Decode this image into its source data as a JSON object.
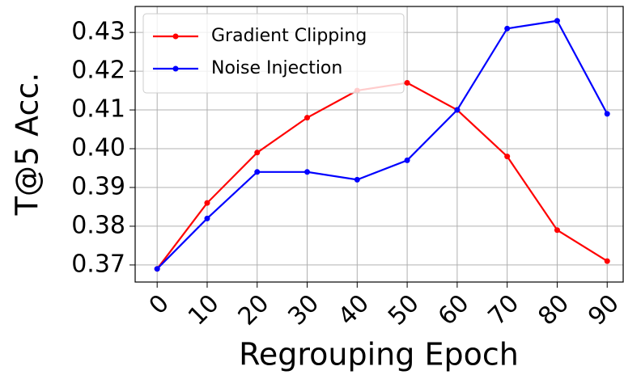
{
  "chart_data": {
    "type": "line",
    "xlabel": "Regrouping Epoch",
    "ylabel": "T@5 Acc.",
    "x": [
      0,
      10,
      20,
      30,
      40,
      50,
      60,
      70,
      80,
      90
    ],
    "series": [
      {
        "name": "Gradient Clipping",
        "color": "#ff0000",
        "values": [
          0.369,
          0.386,
          0.399,
          0.408,
          0.415,
          0.417,
          0.41,
          0.398,
          0.379,
          0.371
        ]
      },
      {
        "name": "Noise Injection",
        "color": "#0000ff",
        "values": [
          0.369,
          0.382,
          0.394,
          0.394,
          0.392,
          0.397,
          0.41,
          0.431,
          0.433,
          0.409
        ]
      }
    ],
    "xlim": [
      -4.4,
      93.2
    ],
    "ylim": [
      0.3656,
      0.4367
    ],
    "xticks": [
      0,
      10,
      20,
      30,
      40,
      50,
      60,
      70,
      80,
      90
    ],
    "yticks": [
      0.37,
      0.38,
      0.39,
      {
        "value": 0.4,
        "label": "0.40"
      },
      0.41,
      0.42,
      0.43
    ],
    "grid": true,
    "legend": "upper-left"
  }
}
